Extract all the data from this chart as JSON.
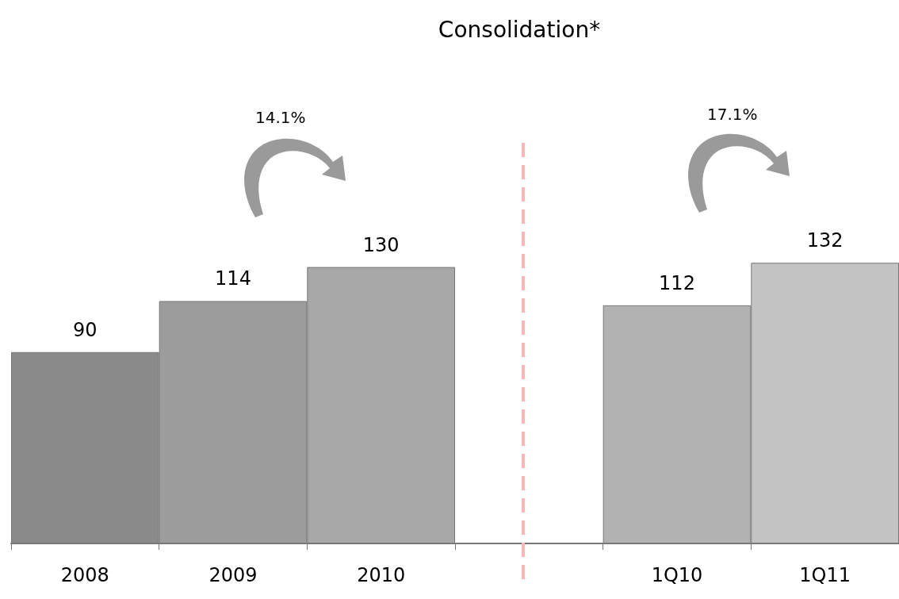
{
  "chart_data": {
    "type": "bar",
    "title": "Consolidation*",
    "categories": [
      "2008",
      "2009",
      "2010",
      null,
      "1Q10",
      "1Q11"
    ],
    "values": [
      90,
      114,
      130,
      null,
      112,
      132
    ],
    "colors": [
      "#8a8a8a",
      "#9c9c9c",
      "#a8a8a8",
      "#ffffff",
      "#b2b2b2",
      "#c4c4c4"
    ],
    "data_labels": true,
    "annotations": [
      "14.1%",
      "17.1%"
    ]
  }
}
